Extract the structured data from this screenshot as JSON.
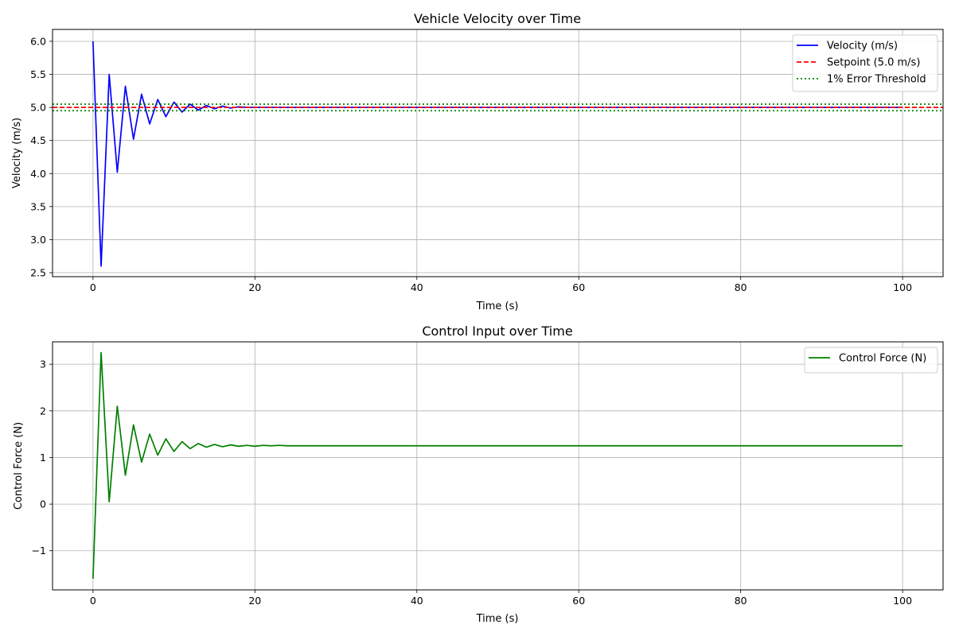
{
  "chart_data": [
    {
      "type": "line",
      "title": "Vehicle Velocity over Time",
      "xlabel": "Time (s)",
      "ylabel": "Velocity (m/s)",
      "xlim": [
        -5,
        105
      ],
      "ylim": [
        2.44,
        6.18
      ],
      "xticks": [
        0,
        20,
        40,
        60,
        80,
        100
      ],
      "yticks": [
        2.5,
        3.0,
        3.5,
        4.0,
        4.5,
        5.0,
        5.5,
        6.0
      ],
      "ytick_labels": [
        "2.5",
        "3.0",
        "3.5",
        "4.0",
        "4.5",
        "5.0",
        "5.5",
        "6.0"
      ],
      "grid": true,
      "legend_position": "top-right",
      "series": [
        {
          "name": "Velocity (m/s)",
          "color": "#0000ff",
          "style": "solid",
          "x": [
            0,
            1,
            2,
            3,
            4,
            5,
            6,
            7,
            8,
            9,
            10,
            11,
            12,
            13,
            14,
            15,
            16,
            17,
            18,
            19,
            20,
            21,
            22,
            23,
            24,
            25,
            26,
            27,
            28,
            29,
            30,
            100
          ],
          "y": [
            6.0,
            2.6,
            5.5,
            4.02,
            5.32,
            4.52,
            5.2,
            4.75,
            5.12,
            4.86,
            5.08,
            4.93,
            5.05,
            4.96,
            5.03,
            4.98,
            5.02,
            4.99,
            5.01,
            5.0,
            5.0,
            5.0,
            5.0,
            5.0,
            5.0,
            5.0,
            5.0,
            5.0,
            5.0,
            5.0,
            5.0,
            5.0
          ]
        },
        {
          "name": "Setpoint (5.0 m/s)",
          "color": "#ff0000",
          "style": "dashed",
          "hline": 5.0
        },
        {
          "name": "1% Error Threshold",
          "color": "#008000",
          "style": "dotted",
          "hlines": [
            4.95,
            5.05
          ]
        }
      ]
    },
    {
      "type": "line",
      "title": "Control Input over Time",
      "xlabel": "Time (s)",
      "ylabel": "Control Force (N)",
      "xlim": [
        -5,
        105
      ],
      "ylim": [
        -1.84,
        3.48
      ],
      "xticks": [
        0,
        20,
        40,
        60,
        80,
        100
      ],
      "yticks": [
        -1,
        0,
        1,
        2,
        3
      ],
      "ytick_labels": [
        "−1",
        "0",
        "1",
        "2",
        "3"
      ],
      "grid": true,
      "legend_position": "top-right",
      "series": [
        {
          "name": "Control Force (N)",
          "color": "#008000",
          "style": "solid",
          "x": [
            0,
            1,
            2,
            3,
            4,
            5,
            6,
            7,
            8,
            9,
            10,
            11,
            12,
            13,
            14,
            15,
            16,
            17,
            18,
            19,
            20,
            21,
            22,
            23,
            24,
            25,
            26,
            27,
            28,
            29,
            30,
            100
          ],
          "y": [
            -1.6,
            3.25,
            0.05,
            2.1,
            0.62,
            1.7,
            0.9,
            1.5,
            1.05,
            1.4,
            1.13,
            1.34,
            1.19,
            1.3,
            1.22,
            1.28,
            1.23,
            1.27,
            1.24,
            1.26,
            1.24,
            1.26,
            1.25,
            1.26,
            1.25,
            1.25,
            1.25,
            1.25,
            1.25,
            1.25,
            1.25,
            1.25
          ]
        }
      ]
    }
  ]
}
